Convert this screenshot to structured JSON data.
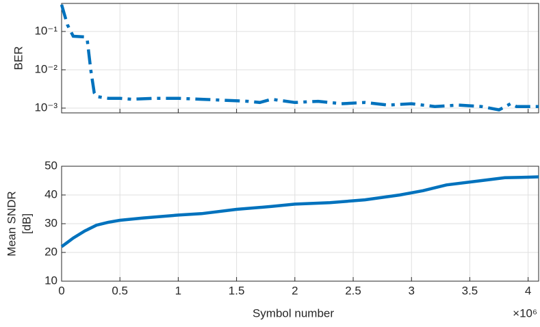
{
  "chart_data": [
    {
      "type": "line",
      "ylabel": "BER",
      "log_y": true,
      "grid": true,
      "show_xtick_labels": false,
      "x": [
        0,
        0.05,
        0.1,
        0.2,
        0.22,
        0.25,
        0.28,
        0.3,
        0.4,
        0.5,
        0.6,
        0.8,
        1.0,
        1.2,
        1.4,
        1.6,
        1.7,
        1.8,
        2.0,
        2.2,
        2.4,
        2.6,
        2.8,
        3.0,
        3.2,
        3.4,
        3.6,
        3.75,
        3.85,
        3.9,
        4.09
      ],
      "series": [
        {
          "color": "#0072bd",
          "dash": "dashdot",
          "values": [
            0.5,
            0.15,
            0.075,
            0.072,
            0.06,
            0.01,
            0.0025,
            0.002,
            0.0018,
            0.0018,
            0.0017,
            0.0018,
            0.0018,
            0.0017,
            0.0016,
            0.0015,
            0.0014,
            0.0017,
            0.0014,
            0.0015,
            0.0013,
            0.0014,
            0.0012,
            0.0013,
            0.0011,
            0.0012,
            0.0011,
            0.0009,
            0.0013,
            0.0011,
            0.0011
          ]
        }
      ],
      "xlim": [
        0,
        4.09
      ],
      "xticks": [
        0,
        0.5,
        1,
        1.5,
        2,
        2.5,
        3,
        3.5,
        4
      ],
      "ylim": [
        0.00075,
        0.54
      ],
      "yticks": [
        {
          "value": 0.001,
          "label": "10⁻³"
        },
        {
          "value": 0.01,
          "label": "10⁻²"
        },
        {
          "value": 0.1,
          "label": "10⁻¹"
        }
      ]
    },
    {
      "type": "line",
      "ylabel": [
        "Mean SNDR",
        "[dB]"
      ],
      "xlabel": "Symbol number",
      "x_multiplier": "×10⁶",
      "log_y": false,
      "grid": true,
      "show_xtick_labels": true,
      "x": [
        0,
        0.05,
        0.1,
        0.2,
        0.3,
        0.4,
        0.5,
        0.7,
        1.0,
        1.2,
        1.5,
        1.8,
        2.0,
        2.3,
        2.6,
        2.9,
        3.1,
        3.3,
        3.6,
        3.8,
        4.0,
        4.09
      ],
      "series": [
        {
          "color": "#0072bd",
          "dash": "solid",
          "values": [
            22,
            23.5,
            25,
            27.5,
            29.5,
            30.5,
            31.2,
            32,
            33,
            33.5,
            35,
            36,
            36.8,
            37.3,
            38.3,
            40,
            41.5,
            43.5,
            45,
            46,
            46.2,
            46.3
          ]
        }
      ],
      "xlim": [
        0,
        4.09
      ],
      "xticks": [
        0,
        0.5,
        1,
        1.5,
        2,
        2.5,
        3,
        3.5,
        4
      ],
      "ylim": [
        10,
        50
      ],
      "yticks": [
        10,
        20,
        30,
        40,
        50
      ]
    }
  ]
}
